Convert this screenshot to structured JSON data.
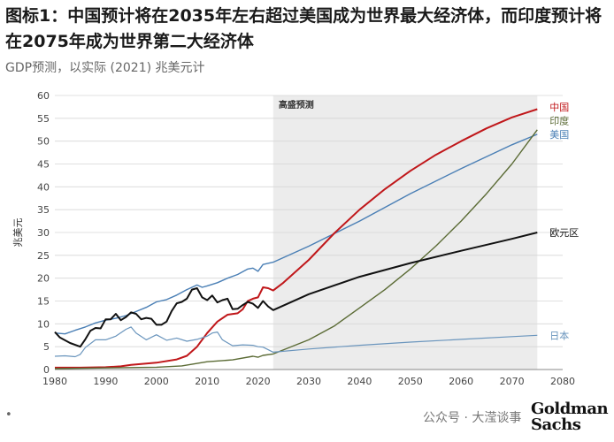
{
  "header": {
    "title": "图标1：中国预计将在2035年左右超过美国成为世界最大经济体，而印度预计将在2075年成为世界第二大经济体",
    "subtitle": "GDP预测，以实际 (2021) 兆美元计"
  },
  "footer": {
    "left_mark": "•",
    "watermark": "公众号 · 大滢谈事",
    "logo_line1": "Goldman",
    "logo_line2": "Sachs"
  },
  "chart_data": {
    "type": "line",
    "title": "",
    "xlabel": "",
    "ylabel": "兆美元",
    "xlim": [
      1980,
      2080
    ],
    "ylim": [
      0,
      60
    ],
    "x_ticks": [
      1980,
      1990,
      2000,
      2010,
      2020,
      2030,
      2040,
      2050,
      2060,
      2070,
      2080
    ],
    "y_ticks": [
      0,
      5,
      10,
      15,
      20,
      25,
      30,
      35,
      40,
      45,
      50,
      55,
      60
    ],
    "grid": "horizontal",
    "projection_region": {
      "label": "高盛预测",
      "start": 2023,
      "end": 2075
    },
    "series": [
      {
        "name": "美国",
        "color": "#4a7fb5",
        "width": 1.4,
        "points": [
          [
            1980,
            8
          ],
          [
            1982,
            7.8
          ],
          [
            1984,
            8.6
          ],
          [
            1986,
            9.3
          ],
          [
            1988,
            10.2
          ],
          [
            1990,
            10.8
          ],
          [
            1992,
            11.2
          ],
          [
            1994,
            11.8
          ],
          [
            1996,
            12.7
          ],
          [
            1998,
            13.6
          ],
          [
            2000,
            14.8
          ],
          [
            2002,
            15.3
          ],
          [
            2004,
            16.3
          ],
          [
            2006,
            17.5
          ],
          [
            2008,
            18.5
          ],
          [
            2009,
            18
          ],
          [
            2010,
            18.3
          ],
          [
            2012,
            19
          ],
          [
            2014,
            20
          ],
          [
            2016,
            20.8
          ],
          [
            2018,
            22
          ],
          [
            2019,
            22.2
          ],
          [
            2020,
            21.5
          ],
          [
            2021,
            23
          ],
          [
            2023,
            23.5
          ],
          [
            2030,
            27
          ],
          [
            2040,
            32.5
          ],
          [
            2050,
            38.5
          ],
          [
            2060,
            44
          ],
          [
            2070,
            49.2
          ],
          [
            2075,
            51.5
          ]
        ]
      },
      {
        "name": "中国",
        "color": "#c0171a",
        "width": 2,
        "points": [
          [
            1980,
            0.4
          ],
          [
            1985,
            0.4
          ],
          [
            1990,
            0.5
          ],
          [
            1993,
            0.7
          ],
          [
            1995,
            1
          ],
          [
            2000,
            1.5
          ],
          [
            2004,
            2.2
          ],
          [
            2006,
            3
          ],
          [
            2008,
            5
          ],
          [
            2010,
            8
          ],
          [
            2012,
            10.5
          ],
          [
            2014,
            12
          ],
          [
            2016,
            12.3
          ],
          [
            2017,
            13.2
          ],
          [
            2018,
            15
          ],
          [
            2019,
            15.5
          ],
          [
            2020,
            15.8
          ],
          [
            2021,
            18
          ],
          [
            2022,
            17.8
          ],
          [
            2023,
            17.3
          ],
          [
            2025,
            19
          ],
          [
            2030,
            24
          ],
          [
            2035,
            29.8
          ],
          [
            2040,
            35
          ],
          [
            2045,
            39.5
          ],
          [
            2050,
            43.5
          ],
          [
            2055,
            47
          ],
          [
            2060,
            50
          ],
          [
            2065,
            52.8
          ],
          [
            2070,
            55.2
          ],
          [
            2075,
            57
          ]
        ]
      },
      {
        "name": "印度",
        "color": "#5b6b35",
        "width": 1.4,
        "points": [
          [
            1980,
            0.2
          ],
          [
            1990,
            0.35
          ],
          [
            2000,
            0.5
          ],
          [
            2005,
            0.8
          ],
          [
            2010,
            1.7
          ],
          [
            2015,
            2.1
          ],
          [
            2019,
            2.9
          ],
          [
            2020,
            2.7
          ],
          [
            2021,
            3.1
          ],
          [
            2023,
            3.4
          ],
          [
            2030,
            6.5
          ],
          [
            2035,
            9.5
          ],
          [
            2040,
            13.5
          ],
          [
            2045,
            17.5
          ],
          [
            2050,
            22
          ],
          [
            2055,
            27
          ],
          [
            2060,
            32.5
          ],
          [
            2065,
            38.5
          ],
          [
            2070,
            45
          ],
          [
            2075,
            52.5
          ]
        ]
      },
      {
        "name": "欧元区",
        "color": "#111111",
        "width": 2,
        "points": [
          [
            1980,
            8.2
          ],
          [
            1981,
            7
          ],
          [
            1983,
            5.8
          ],
          [
            1985,
            5
          ],
          [
            1986,
            6.6
          ],
          [
            1987,
            8.5
          ],
          [
            1988,
            9.1
          ],
          [
            1989,
            9
          ],
          [
            1990,
            11
          ],
          [
            1991,
            11
          ],
          [
            1992,
            12.2
          ],
          [
            1993,
            10.8
          ],
          [
            1994,
            11.5
          ],
          [
            1995,
            12.5
          ],
          [
            1996,
            12.2
          ],
          [
            1997,
            11
          ],
          [
            1998,
            11.3
          ],
          [
            1999,
            11.1
          ],
          [
            2000,
            9.8
          ],
          [
            2001,
            9.8
          ],
          [
            2002,
            10.5
          ],
          [
            2003,
            12.8
          ],
          [
            2004,
            14.5
          ],
          [
            2005,
            14.8
          ],
          [
            2006,
            15.5
          ],
          [
            2007,
            17.5
          ],
          [
            2008,
            17.8
          ],
          [
            2009,
            15.8
          ],
          [
            2010,
            15.2
          ],
          [
            2011,
            16.2
          ],
          [
            2012,
            14.7
          ],
          [
            2013,
            15.2
          ],
          [
            2014,
            15.5
          ],
          [
            2015,
            13.2
          ],
          [
            2016,
            13.3
          ],
          [
            2017,
            14.1
          ],
          [
            2018,
            14.8
          ],
          [
            2019,
            14.4
          ],
          [
            2020,
            13.5
          ],
          [
            2021,
            15
          ],
          [
            2022,
            13.8
          ],
          [
            2023,
            13
          ],
          [
            2030,
            16.5
          ],
          [
            2040,
            20.3
          ],
          [
            2050,
            23.3
          ],
          [
            2060,
            26
          ],
          [
            2070,
            28.6
          ],
          [
            2075,
            30
          ]
        ]
      },
      {
        "name": "日本",
        "color": "#6a95bd",
        "width": 1.2,
        "points": [
          [
            1980,
            2.9
          ],
          [
            1982,
            3
          ],
          [
            1984,
            2.8
          ],
          [
            1985,
            3.3
          ],
          [
            1986,
            4.8
          ],
          [
            1988,
            6.5
          ],
          [
            1990,
            6.5
          ],
          [
            1992,
            7.3
          ],
          [
            1994,
            8.8
          ],
          [
            1995,
            9.3
          ],
          [
            1996,
            8
          ],
          [
            1998,
            6.5
          ],
          [
            2000,
            7.6
          ],
          [
            2002,
            6.4
          ],
          [
            2004,
            6.9
          ],
          [
            2006,
            6.2
          ],
          [
            2008,
            6.6
          ],
          [
            2010,
            7.3
          ],
          [
            2011,
            8
          ],
          [
            2012,
            8.2
          ],
          [
            2013,
            6.5
          ],
          [
            2015,
            5.2
          ],
          [
            2017,
            5.4
          ],
          [
            2019,
            5.3
          ],
          [
            2020,
            5
          ],
          [
            2021,
            4.9
          ],
          [
            2023,
            3.8
          ],
          [
            2030,
            4.5
          ],
          [
            2040,
            5.3
          ],
          [
            2050,
            6
          ],
          [
            2060,
            6.6
          ],
          [
            2070,
            7.2
          ],
          [
            2075,
            7.5
          ]
        ]
      }
    ]
  }
}
